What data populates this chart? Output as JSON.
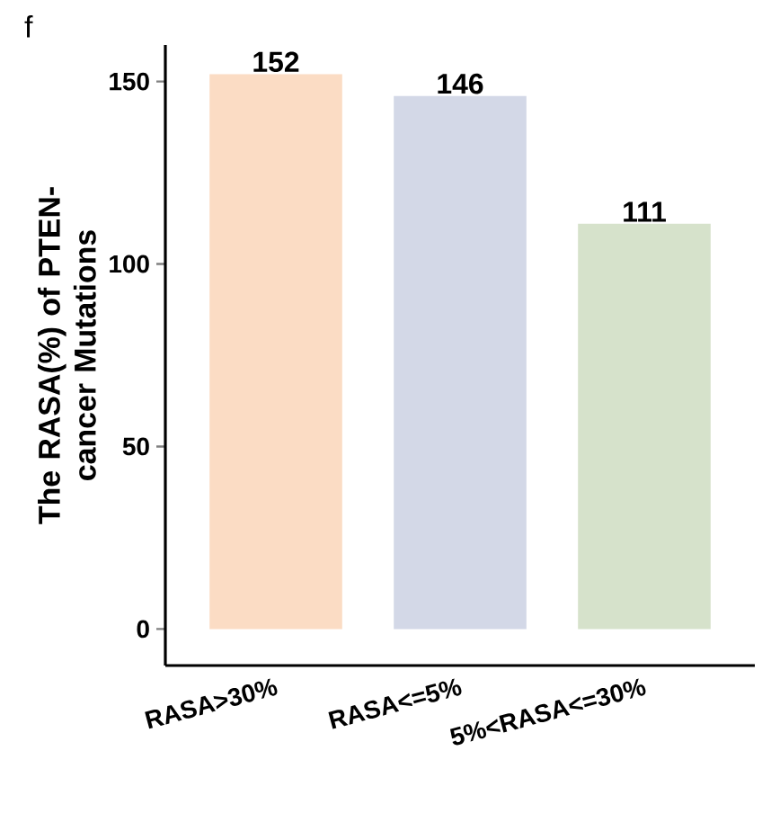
{
  "chart_data": {
    "type": "bar",
    "ylabel": "The RASA(%) of PTEN-cancer Mutations",
    "annotations": [
      "f"
    ],
    "categories": [
      "RASA>30%",
      "RASA<=5%",
      "5%<RASA<=30%"
    ],
    "values": [
      152,
      146,
      111
    ],
    "colors": [
      "#fbdcc4",
      "#d3d8e7",
      "#d6e2cb"
    ],
    "ylim": [
      -10,
      160
    ],
    "yticks": [
      0,
      50,
      100,
      150
    ],
    "data_labels": true
  }
}
